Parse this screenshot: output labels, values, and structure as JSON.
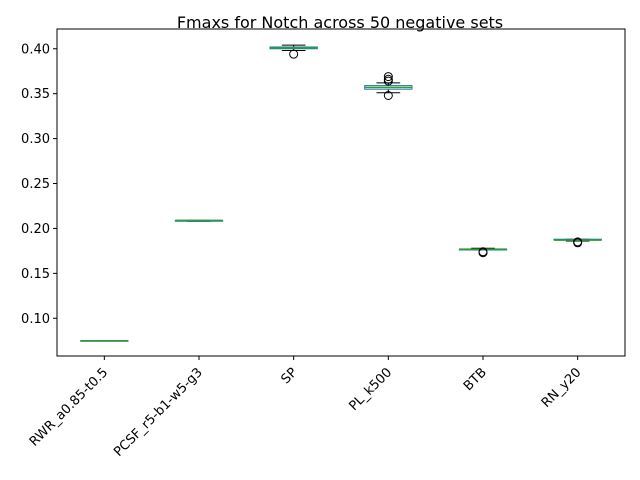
{
  "chart_data": {
    "type": "boxplot",
    "title": "Fmaxs for Notch across 50 negative sets",
    "xlabel": "",
    "ylabel": "",
    "ylim": [
      0.058,
      0.422
    ],
    "yticks": [
      0.1,
      0.15,
      0.2,
      0.25,
      0.3,
      0.35,
      0.4
    ],
    "ytick_labels": [
      "0.10",
      "0.15",
      "0.20",
      "0.25",
      "0.30",
      "0.35",
      "0.40"
    ],
    "categories": [
      "RWR_a0.85-t0.5",
      "PCSF_r5-b1-w5-g3",
      "SP",
      "PL_k500",
      "BTB",
      "RN_y20"
    ],
    "boxes": [
      {
        "whislo": 0.075,
        "q1": 0.075,
        "med": 0.075,
        "q3": 0.075,
        "whishi": 0.075,
        "fliers": []
      },
      {
        "whislo": 0.208,
        "q1": 0.208,
        "med": 0.209,
        "q3": 0.209,
        "whishi": 0.209,
        "fliers": []
      },
      {
        "whislo": 0.398,
        "q1": 0.4,
        "med": 0.401,
        "q3": 0.402,
        "whishi": 0.404,
        "fliers": [
          0.394
        ]
      },
      {
        "whislo": 0.351,
        "q1": 0.355,
        "med": 0.357,
        "q3": 0.359,
        "whishi": 0.362,
        "fliers": [
          0.348,
          0.364,
          0.366,
          0.369
        ]
      },
      {
        "whislo": 0.176,
        "q1": 0.176,
        "med": 0.177,
        "q3": 0.177,
        "whishi": 0.178,
        "fliers": [
          0.173,
          0.174
        ]
      },
      {
        "whislo": 0.186,
        "q1": 0.187,
        "med": 0.187,
        "q3": 0.188,
        "whishi": 0.188,
        "fliers": [
          0.184,
          0.185
        ]
      }
    ],
    "colors": {
      "box": "#1f77b4",
      "median": "#2ca02c",
      "whisker": "#000000",
      "flier": "#000000"
    },
    "grid": false,
    "legend": "none"
  }
}
